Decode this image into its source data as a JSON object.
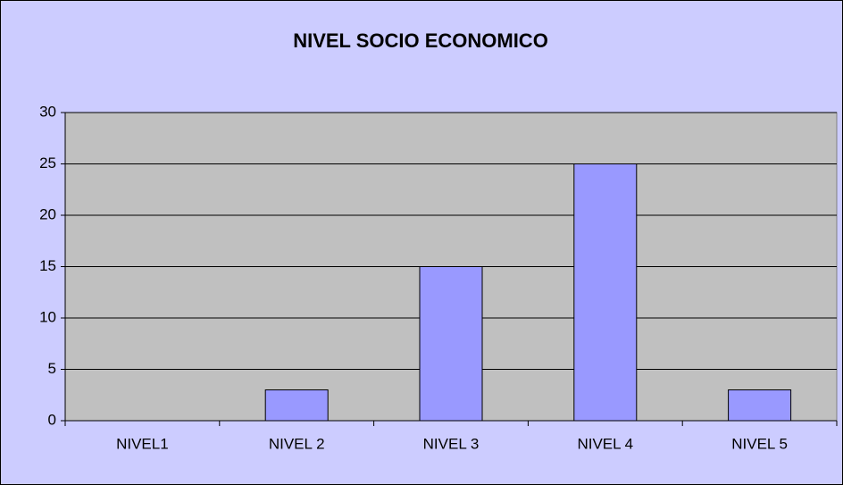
{
  "chart_data": {
    "type": "bar",
    "title": "NIVEL SOCIO ECONOMICO",
    "categories": [
      "NIVEL1",
      "NIVEL 2",
      "NIVEL 3",
      "NIVEL 4",
      "NIVEL 5"
    ],
    "values": [
      0,
      3,
      15,
      25,
      3
    ],
    "color": "#9999ff",
    "ylim": [
      0,
      30
    ],
    "yticks": [
      0,
      5,
      10,
      15,
      20,
      25,
      30
    ],
    "grid": true
  }
}
